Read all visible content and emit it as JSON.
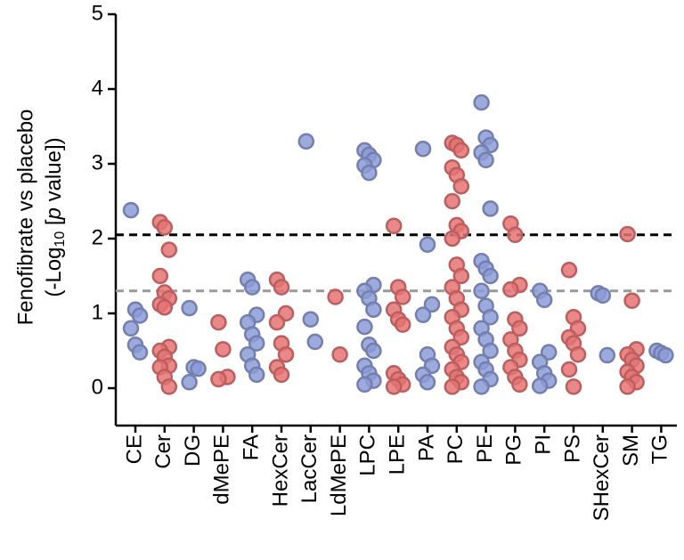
{
  "chart_data": {
    "type": "strip",
    "y_label": "Fenofibrate vs placebo",
    "y_label2": [
      "(-Log",
      "10",
      " [",
      "p",
      " value])"
    ],
    "categories": [
      "CE",
      "Cer",
      "DG",
      "dMePE",
      "FA",
      "HexCer",
      "LacCer",
      "LdMePE",
      "LPC",
      "LPE",
      "PA",
      "PC",
      "PE",
      "PG",
      "PI",
      "PS",
      "SHexCer",
      "SM",
      "TG"
    ],
    "colors": [
      "#8c9bd6",
      "#e57373",
      "#8c9bd6",
      "#e57373",
      "#8c9bd6",
      "#e57373",
      "#8c9bd6",
      "#e57373",
      "#8c9bd6",
      "#e57373",
      "#8c9bd6",
      "#e57373",
      "#8c9bd6",
      "#e57373",
      "#8c9bd6",
      "#e57373",
      "#8c9bd6",
      "#e57373",
      "#8c9bd6"
    ],
    "values": [
      [
        2.38,
        1.05,
        0.97,
        0.8,
        0.58,
        0.48
      ],
      [
        2.22,
        2.15,
        1.85,
        1.5,
        1.28,
        1.2,
        1.12,
        1.08,
        0.55,
        0.5,
        0.42,
        0.3,
        0.28,
        0.15,
        0.02
      ],
      [
        1.07,
        0.28,
        0.26,
        0.08
      ],
      [
        0.88,
        0.52,
        0.15,
        0.12
      ],
      [
        1.45,
        1.35,
        0.98,
        0.88,
        0.72,
        0.6,
        0.45,
        0.3,
        0.18
      ],
      [
        1.45,
        1.35,
        1.0,
        0.88,
        0.6,
        0.45,
        0.28,
        0.18
      ],
      [
        3.3,
        0.92,
        0.62
      ],
      [
        1.22,
        0.45
      ],
      [
        3.18,
        3.12,
        3.05,
        2.98,
        2.88,
        1.38,
        1.3,
        1.2,
        1.05,
        0.82,
        0.58,
        0.5,
        0.3,
        0.2,
        0.1,
        0.05
      ],
      [
        2.17,
        1.35,
        1.22,
        1.05,
        0.92,
        0.85,
        0.2,
        0.12,
        0.05,
        0.02
      ],
      [
        3.2,
        1.92,
        1.12,
        0.98,
        0.45,
        0.3,
        0.18,
        0.08
      ],
      [
        3.28,
        3.25,
        3.18,
        2.95,
        2.85,
        2.7,
        2.5,
        2.18,
        2.1,
        2.0,
        1.65,
        1.5,
        1.35,
        1.2,
        1.05,
        0.95,
        0.8,
        0.68,
        0.55,
        0.45,
        0.35,
        0.25,
        0.15,
        0.08,
        0.02
      ],
      [
        3.82,
        3.35,
        3.25,
        3.15,
        3.05,
        2.4,
        1.7,
        1.6,
        1.5,
        1.3,
        1.1,
        0.95,
        0.8,
        0.65,
        0.5,
        0.35,
        0.25,
        0.12,
        0.02
      ],
      [
        2.2,
        2.05,
        1.38,
        1.32,
        0.92,
        0.8,
        0.65,
        0.5,
        0.38,
        0.28,
        0.15,
        0.05
      ],
      [
        1.3,
        1.18,
        0.48,
        0.35,
        0.2,
        0.1,
        0.03
      ],
      [
        1.58,
        0.95,
        0.8,
        0.68,
        0.6,
        0.45,
        0.25,
        0.02
      ],
      [
        1.27,
        1.24,
        0.44
      ],
      [
        2.06,
        1.17,
        0.52,
        0.45,
        0.38,
        0.3,
        0.22,
        0.15,
        0.08,
        0.02
      ],
      [
        0.5,
        0.47,
        0.44
      ]
    ],
    "hlines": [
      {
        "value": 2.05,
        "color": "#000000"
      },
      {
        "value": 1.3,
        "color": "#999999"
      }
    ],
    "ylim": [
      -0.5,
      5
    ],
    "yticks": [
      0,
      1,
      2,
      3,
      4,
      5
    ]
  }
}
